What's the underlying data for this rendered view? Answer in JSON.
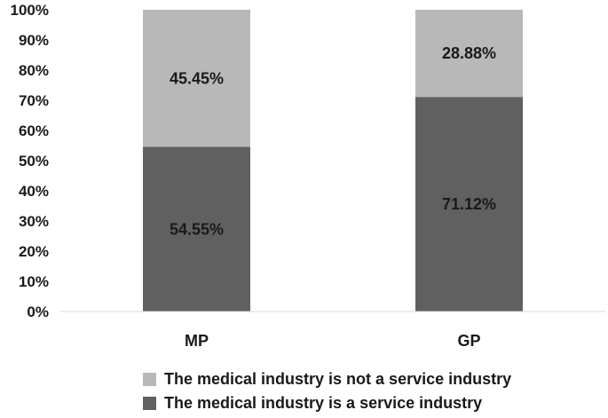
{
  "chart_data": {
    "type": "bar",
    "stacked": true,
    "percent": true,
    "categories": [
      "MP",
      "GP"
    ],
    "series": [
      {
        "name": "The medical industry is a service industry",
        "values": [
          54.55,
          71.12
        ],
        "labels": [
          "54.55%",
          "71.12%"
        ],
        "color": "#606060"
      },
      {
        "name": "The medical industry is not a service industry",
        "values": [
          45.45,
          28.88
        ],
        "labels": [
          "45.45%",
          "28.88%"
        ],
        "color": "#b8b8b8"
      }
    ],
    "yticks": [
      "0%",
      "10%",
      "20%",
      "30%",
      "40%",
      "50%",
      "60%",
      "70%",
      "80%",
      "90%",
      "100%"
    ],
    "ylim": [
      0,
      100
    ],
    "grid": false,
    "legend_position": "bottom"
  },
  "legend": [
    {
      "label": "The medical industry is not a service industry",
      "color": "#b8b8b8"
    },
    {
      "label": "The medical industry is a service industry",
      "color": "#606060"
    }
  ]
}
